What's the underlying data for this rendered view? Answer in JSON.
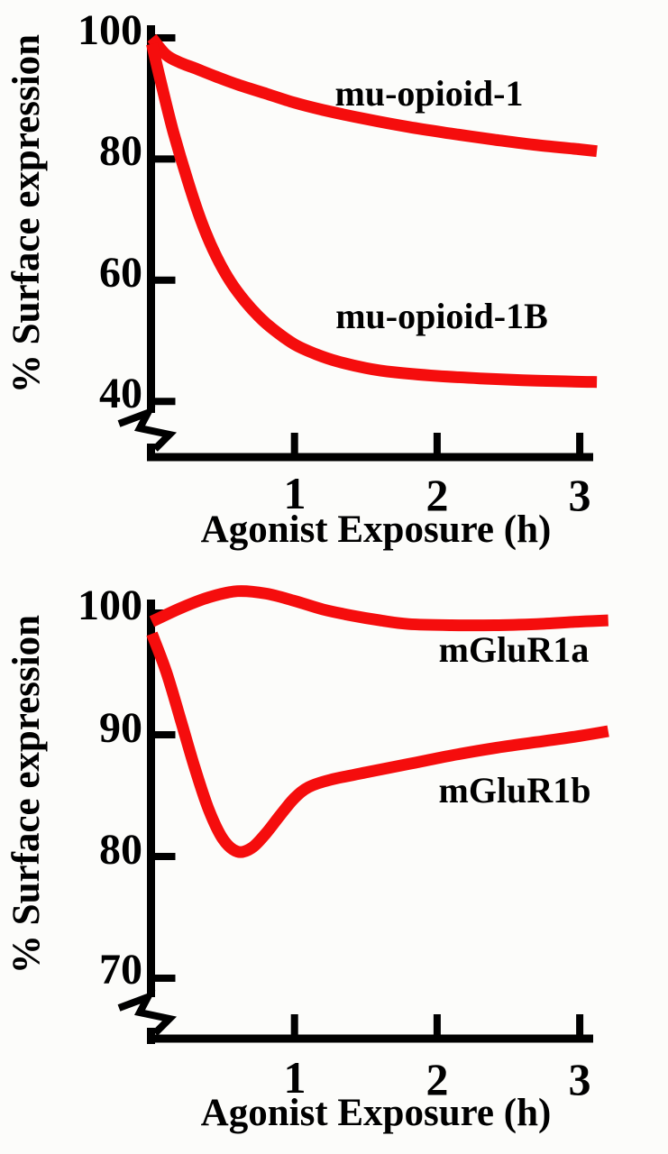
{
  "figure": {
    "background": "#fcfcfa",
    "axis_color": "#000000",
    "line_color": "#f50d0d"
  },
  "chart_data": [
    {
      "type": "line",
      "title": "",
      "xlabel": "Agonist Exposure (h)",
      "ylabel": "% Surface expression",
      "xlim": [
        0,
        3.2
      ],
      "ylim": [
        40,
        100
      ],
      "axis_break": true,
      "grid": false,
      "legend_position": "inline-annotations",
      "x_ticks": [
        1,
        2,
        3
      ],
      "y_ticks": [
        100,
        80,
        60,
        40
      ],
      "series": [
        {
          "name": "mu-opioid-1",
          "points": [
            [
              0,
              100
            ],
            [
              0.1,
              97.2
            ],
            [
              0.2,
              95.9
            ],
            [
              0.3,
              95.0
            ],
            [
              0.45,
              93.6
            ],
            [
              0.6,
              92.3
            ],
            [
              0.8,
              90.8
            ],
            [
              1.0,
              89.3
            ],
            [
              1.2,
              88.1
            ],
            [
              1.5,
              86.6
            ],
            [
              1.8,
              85.3
            ],
            [
              2.1,
              84.2
            ],
            [
              2.4,
              83.2
            ],
            [
              2.7,
              82.3
            ],
            [
              3.0,
              81.6
            ],
            [
              3.12,
              81.3
            ]
          ]
        },
        {
          "name": "mu-opioid-1B",
          "points": [
            [
              0,
              99
            ],
            [
              0.07,
              92
            ],
            [
              0.15,
              84.5
            ],
            [
              0.25,
              76.5
            ],
            [
              0.35,
              69.5
            ],
            [
              0.45,
              64
            ],
            [
              0.55,
              59.8
            ],
            [
              0.65,
              56.6
            ],
            [
              0.75,
              54
            ],
            [
              0.85,
              51.9
            ],
            [
              1.0,
              49.4
            ],
            [
              1.15,
              47.8
            ],
            [
              1.3,
              46.6
            ],
            [
              1.5,
              45.5
            ],
            [
              1.7,
              44.8
            ],
            [
              2.0,
              44.2
            ],
            [
              2.3,
              43.8
            ],
            [
              2.6,
              43.5
            ],
            [
              2.9,
              43.3
            ],
            [
              3.12,
              43.2
            ]
          ]
        }
      ]
    },
    {
      "type": "line",
      "title": "",
      "xlabel": "Agonist Exposure (h)",
      "ylabel": "% Surface expression",
      "xlim": [
        0,
        3.2
      ],
      "ylim": [
        70,
        100
      ],
      "axis_break": true,
      "grid": false,
      "legend_position": "inline-annotations",
      "x_ticks": [
        1,
        2,
        3
      ],
      "y_ticks": [
        100,
        90,
        80,
        70
      ],
      "series": [
        {
          "name": "mGluR1a",
          "points": [
            [
              0,
              99.3
            ],
            [
              0.2,
              100.4
            ],
            [
              0.4,
              101.3
            ],
            [
              0.6,
              101.8
            ],
            [
              0.8,
              101.6
            ],
            [
              1.0,
              101.0
            ],
            [
              1.2,
              100.3
            ],
            [
              1.4,
              99.8
            ],
            [
              1.6,
              99.4
            ],
            [
              1.8,
              99.1
            ],
            [
              2.1,
              99.0
            ],
            [
              2.4,
              99.0
            ],
            [
              2.7,
              99.1
            ],
            [
              3.0,
              99.3
            ],
            [
              3.2,
              99.4
            ]
          ]
        },
        {
          "name": "mGluR1b",
          "points": [
            [
              0,
              98.3
            ],
            [
              0.1,
              95.2
            ],
            [
              0.2,
              91.3
            ],
            [
              0.3,
              87.3
            ],
            [
              0.4,
              83.8
            ],
            [
              0.5,
              81.4
            ],
            [
              0.6,
              80.4
            ],
            [
              0.7,
              80.7
            ],
            [
              0.8,
              81.9
            ],
            [
              0.9,
              83.4
            ],
            [
              1.0,
              84.8
            ],
            [
              1.1,
              85.7
            ],
            [
              1.25,
              86.3
            ],
            [
              1.5,
              86.9
            ],
            [
              1.8,
              87.6
            ],
            [
              2.1,
              88.3
            ],
            [
              2.4,
              88.9
            ],
            [
              2.7,
              89.4
            ],
            [
              3.0,
              89.9
            ],
            [
              3.2,
              90.3
            ]
          ]
        }
      ]
    }
  ]
}
